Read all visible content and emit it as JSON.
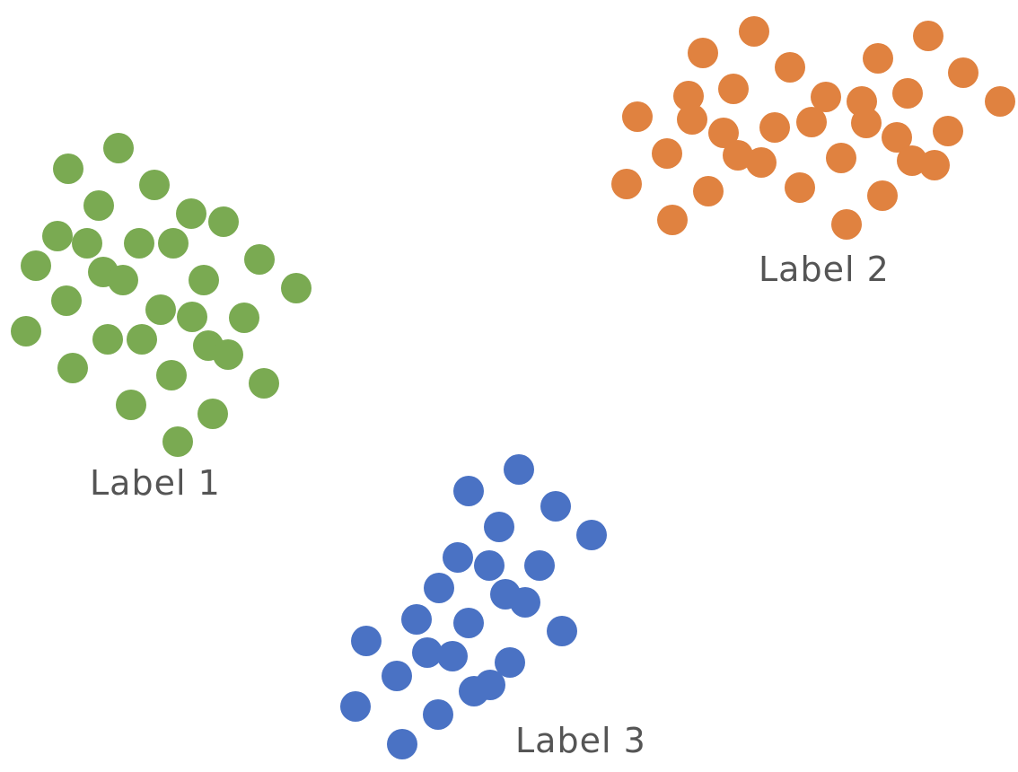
{
  "clusters": [
    {
      "id": "cluster-1",
      "label": "Label 1",
      "color": "#7aaa52",
      "point_count": 31
    },
    {
      "id": "cluster-2",
      "label": "Label 2",
      "color": "#e08240",
      "point_count": 35
    },
    {
      "id": "cluster-3",
      "label": "Label 3",
      "color": "#4a72c4",
      "point_count": 24
    }
  ]
}
